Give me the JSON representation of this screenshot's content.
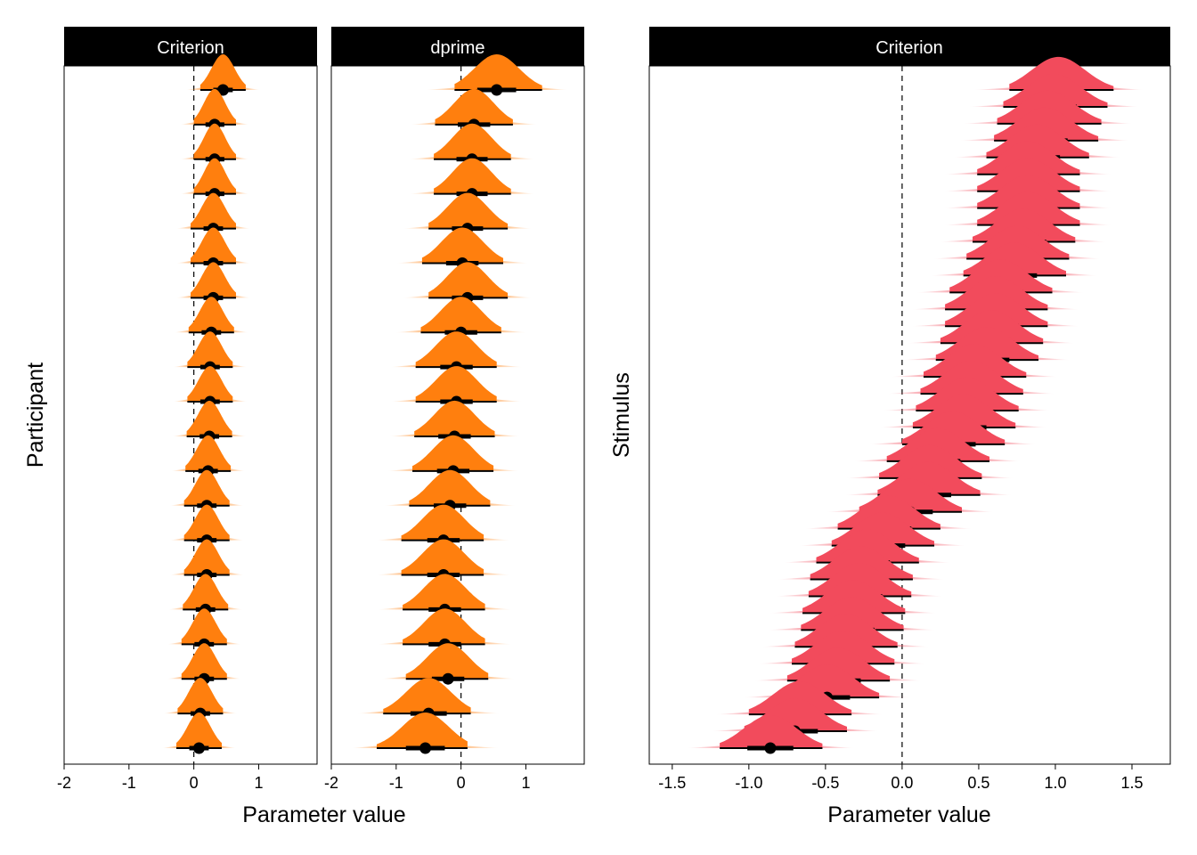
{
  "colors": {
    "orange": "#FF7F0E",
    "red": "#F24B5C",
    "point": "#000000",
    "strip": "#000000"
  },
  "left": {
    "ylabel": "Participant",
    "xlabel": "Parameter value"
  },
  "right": {
    "ylabel": "Stimulus",
    "xlabel": "Parameter value"
  },
  "chart_data": [
    {
      "type": "interval",
      "title": "Criterion",
      "ylabel": "Participant",
      "xlabel": "Parameter value",
      "xlim": [
        -2.0,
        1.9
      ],
      "xticks": [
        -2,
        -1,
        0,
        1
      ],
      "xtick_labels": [
        "-2",
        "-1",
        "0",
        "1"
      ],
      "reference_line_x": 0,
      "color": "#FF7F0E",
      "points": [
        {
          "median": 0.45,
          "q66": [
            0.3,
            0.6
          ],
          "q95": [
            0.1,
            0.8
          ]
        },
        {
          "median": 0.32,
          "q66": [
            0.18,
            0.47
          ],
          "q95": [
            0.0,
            0.65
          ]
        },
        {
          "median": 0.32,
          "q66": [
            0.18,
            0.47
          ],
          "q95": [
            0.0,
            0.65
          ]
        },
        {
          "median": 0.32,
          "q66": [
            0.18,
            0.47
          ],
          "q95": [
            0.0,
            0.65
          ]
        },
        {
          "median": 0.3,
          "q66": [
            0.15,
            0.45
          ],
          "q95": [
            -0.05,
            0.65
          ]
        },
        {
          "median": 0.3,
          "q66": [
            0.15,
            0.45
          ],
          "q95": [
            -0.05,
            0.65
          ]
        },
        {
          "median": 0.3,
          "q66": [
            0.15,
            0.45
          ],
          "q95": [
            -0.05,
            0.65
          ]
        },
        {
          "median": 0.27,
          "q66": [
            0.12,
            0.42
          ],
          "q95": [
            -0.08,
            0.62
          ]
        },
        {
          "median": 0.25,
          "q66": [
            0.1,
            0.4
          ],
          "q95": [
            -0.1,
            0.6
          ]
        },
        {
          "median": 0.25,
          "q66": [
            0.1,
            0.4
          ],
          "q95": [
            -0.1,
            0.6
          ]
        },
        {
          "median": 0.24,
          "q66": [
            0.09,
            0.39
          ],
          "q95": [
            -0.11,
            0.59
          ]
        },
        {
          "median": 0.22,
          "q66": [
            0.07,
            0.37
          ],
          "q95": [
            -0.13,
            0.57
          ]
        },
        {
          "median": 0.2,
          "q66": [
            0.05,
            0.35
          ],
          "q95": [
            -0.15,
            0.55
          ]
        },
        {
          "median": 0.2,
          "q66": [
            0.05,
            0.35
          ],
          "q95": [
            -0.15,
            0.55
          ]
        },
        {
          "median": 0.2,
          "q66": [
            0.05,
            0.35
          ],
          "q95": [
            -0.15,
            0.55
          ]
        },
        {
          "median": 0.18,
          "q66": [
            0.03,
            0.33
          ],
          "q95": [
            -0.17,
            0.53
          ]
        },
        {
          "median": 0.16,
          "q66": [
            0.01,
            0.31
          ],
          "q95": [
            -0.19,
            0.51
          ]
        },
        {
          "median": 0.16,
          "q66": [
            0.01,
            0.31
          ],
          "q95": [
            -0.19,
            0.51
          ]
        },
        {
          "median": 0.1,
          "q66": [
            -0.05,
            0.25
          ],
          "q95": [
            -0.25,
            0.45
          ]
        },
        {
          "median": 0.08,
          "q66": [
            -0.07,
            0.23
          ],
          "q95": [
            -0.27,
            0.43
          ]
        }
      ]
    },
    {
      "type": "interval",
      "title": "dprime",
      "xlabel": "Parameter value",
      "xlim": [
        -2.0,
        1.9
      ],
      "xticks": [
        -2,
        -1,
        0,
        1
      ],
      "xtick_labels": [
        "-2",
        "-1",
        "0",
        "1"
      ],
      "reference_line_x": 0,
      "color": "#FF7F0E",
      "points": [
        {
          "median": 0.55,
          "q66": [
            0.25,
            0.85
          ],
          "q95": [
            -0.1,
            1.25
          ]
        },
        {
          "median": 0.2,
          "q66": [
            -0.05,
            0.45
          ],
          "q95": [
            -0.4,
            0.8
          ]
        },
        {
          "median": 0.17,
          "q66": [
            -0.07,
            0.41
          ],
          "q95": [
            -0.42,
            0.77
          ]
        },
        {
          "median": 0.17,
          "q66": [
            -0.07,
            0.41
          ],
          "q95": [
            -0.42,
            0.77
          ]
        },
        {
          "median": 0.1,
          "q66": [
            -0.14,
            0.34
          ],
          "q95": [
            -0.5,
            0.72
          ]
        },
        {
          "median": 0.02,
          "q66": [
            -0.23,
            0.27
          ],
          "q95": [
            -0.6,
            0.65
          ]
        },
        {
          "median": 0.1,
          "q66": [
            -0.14,
            0.34
          ],
          "q95": [
            -0.5,
            0.72
          ]
        },
        {
          "median": 0.0,
          "q66": [
            -0.25,
            0.25
          ],
          "q95": [
            -0.62,
            0.62
          ]
        },
        {
          "median": -0.07,
          "q66": [
            -0.32,
            0.18
          ],
          "q95": [
            -0.7,
            0.55
          ]
        },
        {
          "median": -0.07,
          "q66": [
            -0.32,
            0.18
          ],
          "q95": [
            -0.7,
            0.55
          ]
        },
        {
          "median": -0.1,
          "q66": [
            -0.35,
            0.15
          ],
          "q95": [
            -0.72,
            0.52
          ]
        },
        {
          "median": -0.12,
          "q66": [
            -0.37,
            0.13
          ],
          "q95": [
            -0.75,
            0.5
          ]
        },
        {
          "median": -0.17,
          "q66": [
            -0.42,
            0.08
          ],
          "q95": [
            -0.8,
            0.45
          ]
        },
        {
          "median": -0.27,
          "q66": [
            -0.52,
            -0.02
          ],
          "q95": [
            -0.92,
            0.35
          ]
        },
        {
          "median": -0.27,
          "q66": [
            -0.52,
            -0.02
          ],
          "q95": [
            -0.92,
            0.35
          ]
        },
        {
          "median": -0.25,
          "q66": [
            -0.5,
            0.0
          ],
          "q95": [
            -0.9,
            0.37
          ]
        },
        {
          "median": -0.25,
          "q66": [
            -0.5,
            0.0
          ],
          "q95": [
            -0.9,
            0.37
          ]
        },
        {
          "median": -0.2,
          "q66": [
            -0.45,
            0.05
          ],
          "q95": [
            -0.85,
            0.42
          ]
        },
        {
          "median": -0.5,
          "q66": [
            -0.78,
            -0.22
          ],
          "q95": [
            -1.2,
            0.15
          ]
        },
        {
          "median": -0.55,
          "q66": [
            -0.85,
            -0.25
          ],
          "q95": [
            -1.3,
            0.1
          ]
        }
      ]
    },
    {
      "type": "interval",
      "title": "Criterion",
      "ylabel": "Stimulus",
      "xlabel": "Parameter value",
      "xlim": [
        -1.65,
        1.75
      ],
      "xticks": [
        -1.5,
        -1.0,
        -0.5,
        0.0,
        0.5,
        1.0,
        1.5
      ],
      "xtick_labels": [
        "-1.5",
        "-1.0",
        "-0.5",
        "0.0",
        "0.5",
        "1.0",
        "1.5"
      ],
      "reference_line_x": 0,
      "color": "#F24B5C",
      "points": [
        {
          "median": 1.02,
          "q66": [
            0.87,
            1.17
          ],
          "q95": [
            0.7,
            1.38
          ]
        },
        {
          "median": 0.99,
          "q66": [
            0.84,
            1.14
          ],
          "q95": [
            0.66,
            1.34
          ]
        },
        {
          "median": 0.95,
          "q66": [
            0.8,
            1.1
          ],
          "q95": [
            0.62,
            1.3
          ]
        },
        {
          "median": 0.93,
          "q66": [
            0.78,
            1.08
          ],
          "q95": [
            0.6,
            1.28
          ]
        },
        {
          "median": 0.88,
          "q66": [
            0.73,
            1.03
          ],
          "q95": [
            0.55,
            1.22
          ]
        },
        {
          "median": 0.82,
          "q66": [
            0.67,
            0.97
          ],
          "q95": [
            0.49,
            1.16
          ]
        },
        {
          "median": 0.82,
          "q66": [
            0.67,
            0.97
          ],
          "q95": [
            0.49,
            1.16
          ]
        },
        {
          "median": 0.82,
          "q66": [
            0.67,
            0.97
          ],
          "q95": [
            0.49,
            1.16
          ]
        },
        {
          "median": 0.82,
          "q66": [
            0.67,
            0.97
          ],
          "q95": [
            0.49,
            1.16
          ]
        },
        {
          "median": 0.79,
          "q66": [
            0.64,
            0.94
          ],
          "q95": [
            0.46,
            1.13
          ]
        },
        {
          "median": 0.75,
          "q66": [
            0.6,
            0.9
          ],
          "q95": [
            0.42,
            1.09
          ]
        },
        {
          "median": 0.73,
          "q66": [
            0.58,
            0.88
          ],
          "q95": [
            0.4,
            1.07
          ]
        },
        {
          "median": 0.64,
          "q66": [
            0.49,
            0.79
          ],
          "q95": [
            0.31,
            0.98
          ]
        },
        {
          "median": 0.61,
          "q66": [
            0.46,
            0.76
          ],
          "q95": [
            0.28,
            0.95
          ]
        },
        {
          "median": 0.61,
          "q66": [
            0.46,
            0.76
          ],
          "q95": [
            0.28,
            0.95
          ]
        },
        {
          "median": 0.58,
          "q66": [
            0.43,
            0.73
          ],
          "q95": [
            0.25,
            0.92
          ]
        },
        {
          "median": 0.55,
          "q66": [
            0.4,
            0.7
          ],
          "q95": [
            0.22,
            0.89
          ]
        },
        {
          "median": 0.47,
          "q66": [
            0.32,
            0.62
          ],
          "q95": [
            0.14,
            0.81
          ]
        },
        {
          "median": 0.45,
          "q66": [
            0.3,
            0.6
          ],
          "q95": [
            0.12,
            0.79
          ]
        },
        {
          "median": 0.42,
          "q66": [
            0.27,
            0.57
          ],
          "q95": [
            0.09,
            0.76
          ]
        },
        {
          "median": 0.4,
          "q66": [
            0.25,
            0.55
          ],
          "q95": [
            0.07,
            0.74
          ]
        },
        {
          "median": 0.33,
          "q66": [
            0.18,
            0.48
          ],
          "q95": [
            0.0,
            0.67
          ]
        },
        {
          "median": 0.23,
          "q66": [
            0.08,
            0.38
          ],
          "q95": [
            -0.1,
            0.57
          ]
        },
        {
          "median": 0.18,
          "q66": [
            0.03,
            0.33
          ],
          "q95": [
            -0.15,
            0.52
          ]
        },
        {
          "median": 0.17,
          "q66": [
            0.02,
            0.32
          ],
          "q95": [
            -0.16,
            0.51
          ]
        },
        {
          "median": 0.05,
          "q66": [
            -0.1,
            0.2
          ],
          "q95": [
            -0.28,
            0.39
          ]
        },
        {
          "median": -0.09,
          "q66": [
            -0.24,
            0.06
          ],
          "q95": [
            -0.42,
            0.25
          ]
        },
        {
          "median": -0.13,
          "q66": [
            -0.28,
            0.02
          ],
          "q95": [
            -0.46,
            0.21
          ]
        },
        {
          "median": -0.23,
          "q66": [
            -0.38,
            -0.08
          ],
          "q95": [
            -0.56,
            0.11
          ]
        },
        {
          "median": -0.27,
          "q66": [
            -0.42,
            -0.12
          ],
          "q95": [
            -0.6,
            0.07
          ]
        },
        {
          "median": -0.28,
          "q66": [
            -0.43,
            -0.13
          ],
          "q95": [
            -0.61,
            0.06
          ]
        },
        {
          "median": -0.32,
          "q66": [
            -0.47,
            -0.17
          ],
          "q95": [
            -0.65,
            0.02
          ]
        },
        {
          "median": -0.33,
          "q66": [
            -0.48,
            -0.18
          ],
          "q95": [
            -0.66,
            0.01
          ]
        },
        {
          "median": -0.37,
          "q66": [
            -0.52,
            -0.22
          ],
          "q95": [
            -0.7,
            -0.03
          ]
        },
        {
          "median": -0.39,
          "q66": [
            -0.54,
            -0.24
          ],
          "q95": [
            -0.72,
            -0.05
          ]
        },
        {
          "median": -0.42,
          "q66": [
            -0.57,
            -0.27
          ],
          "q95": [
            -0.75,
            -0.08
          ]
        },
        {
          "median": -0.49,
          "q66": [
            -0.64,
            -0.34
          ],
          "q95": [
            -0.82,
            -0.15
          ]
        },
        {
          "median": -0.67,
          "q66": [
            -0.82,
            -0.52
          ],
          "q95": [
            -1.0,
            -0.33
          ]
        },
        {
          "median": -0.7,
          "q66": [
            -0.85,
            -0.55
          ],
          "q95": [
            -1.03,
            -0.36
          ]
        },
        {
          "median": -0.86,
          "q66": [
            -1.01,
            -0.71
          ],
          "q95": [
            -1.19,
            -0.52
          ]
        }
      ]
    }
  ]
}
